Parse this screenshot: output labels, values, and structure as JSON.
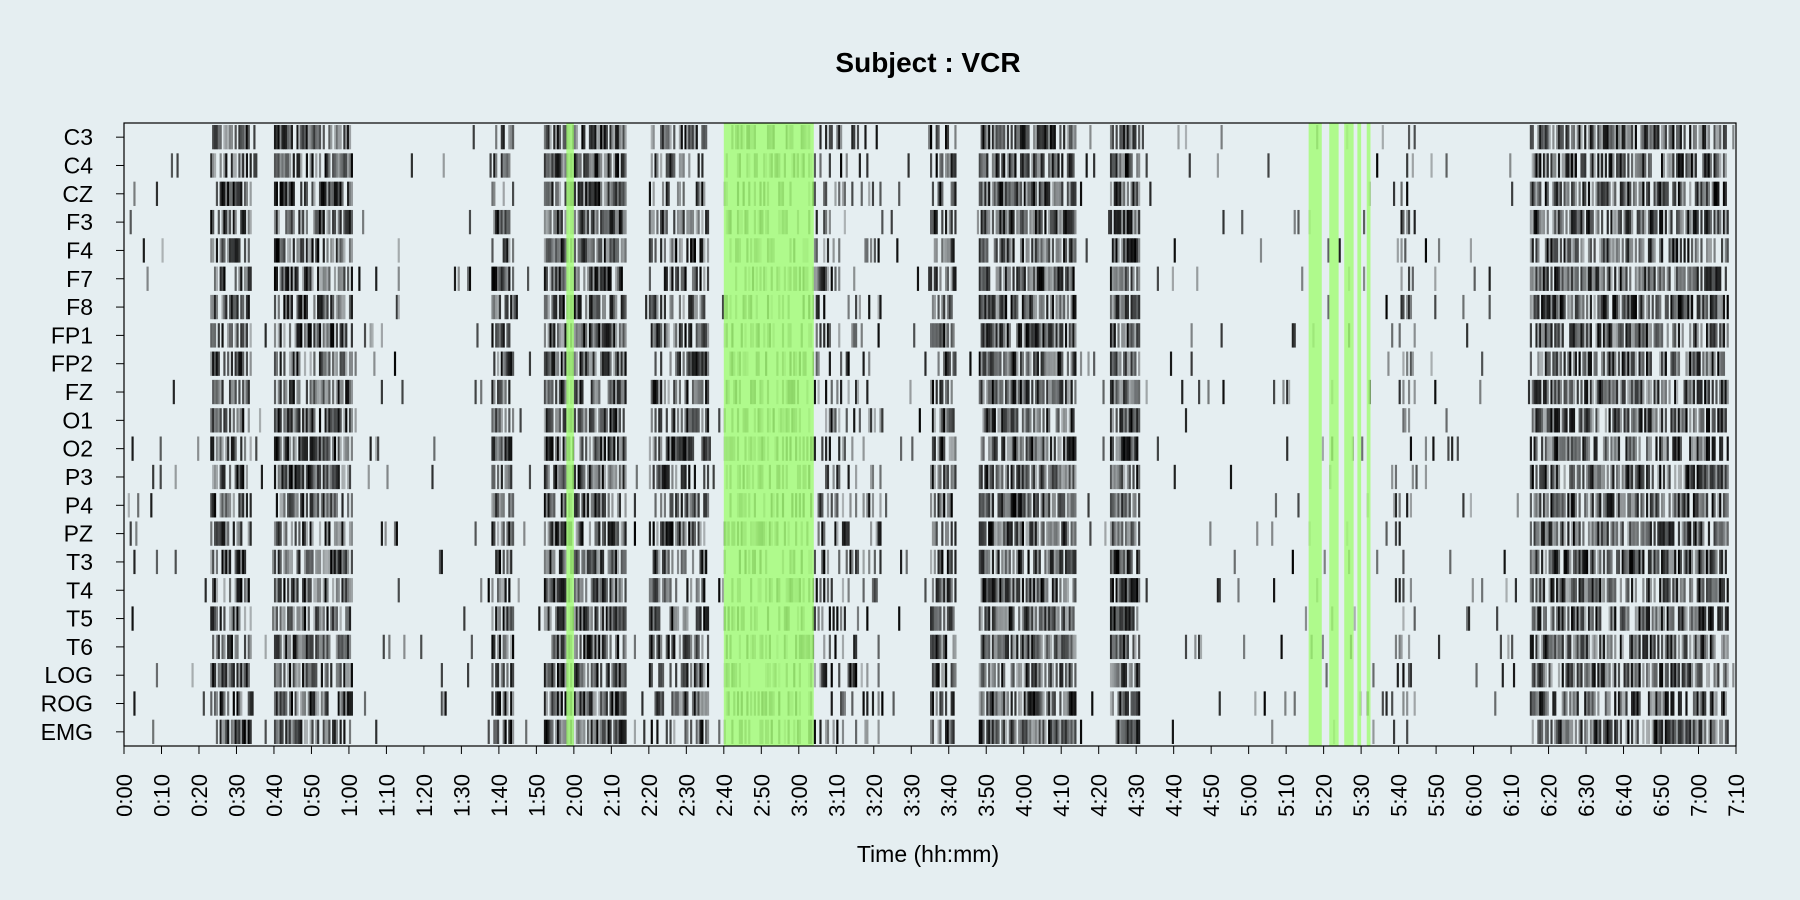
{
  "chart_data": {
    "type": "heatmap",
    "title": "Subject : VCR",
    "xlabel": "Time (hh:mm)",
    "channels": [
      "C3",
      "C4",
      "CZ",
      "F3",
      "F4",
      "F7",
      "F8",
      "FP1",
      "FP2",
      "FZ",
      "O1",
      "O2",
      "P3",
      "P4",
      "PZ",
      "T3",
      "T4",
      "T5",
      "T6",
      "LOG",
      "ROG",
      "EMG"
    ],
    "x_range_minutes": [
      0,
      430
    ],
    "x_tick_labels": [
      "0:00",
      "0:10",
      "0:20",
      "0:30",
      "0:40",
      "0:50",
      "1:00",
      "1:10",
      "1:20",
      "1:30",
      "1:40",
      "1:50",
      "2:00",
      "2:10",
      "2:20",
      "2:30",
      "2:40",
      "2:50",
      "3:00",
      "3:10",
      "3:20",
      "3:30",
      "3:40",
      "3:50",
      "4:00",
      "4:10",
      "4:20",
      "4:30",
      "4:40",
      "4:50",
      "5:00",
      "5:10",
      "5:20",
      "5:30",
      "5:40",
      "5:50",
      "6:00",
      "6:10",
      "6:20",
      "6:30",
      "6:40",
      "6:50",
      "7:00",
      "7:10"
    ],
    "color_scale": {
      "low": "#e6eef1",
      "high": "#000000"
    },
    "highlight_color": "#a6fb7a",
    "highlight_intervals_minutes": [
      [
        118,
        120
      ],
      [
        160,
        184
      ],
      [
        316,
        319.5
      ],
      [
        321.5,
        324
      ],
      [
        325.5,
        328
      ],
      [
        329,
        330
      ],
      [
        331.5,
        332.5
      ]
    ],
    "activity_intervals_minutes": [
      {
        "range": [
          23,
          34
        ],
        "intensity": 0.7
      },
      {
        "range": [
          40,
          61
        ],
        "intensity": 0.75
      },
      {
        "range": [
          98,
          104
        ],
        "intensity": 0.7
      },
      {
        "range": [
          112,
          134
        ],
        "intensity": 0.8
      },
      {
        "range": [
          140,
          156
        ],
        "intensity": 0.6
      },
      {
        "range": [
          160,
          184
        ],
        "intensity": 0.45
      },
      {
        "range": [
          184,
          192
        ],
        "intensity": 0.35
      },
      {
        "range": [
          192,
          202
        ],
        "intensity": 0.25
      },
      {
        "range": [
          215,
          222
        ],
        "intensity": 0.65
      },
      {
        "range": [
          228,
          254
        ],
        "intensity": 0.8
      },
      {
        "range": [
          263,
          271
        ],
        "intensity": 0.85
      },
      {
        "range": [
          338,
          345
        ],
        "intensity": 0.2
      },
      {
        "range": [
          375,
          428
        ],
        "intensity": 0.75
      }
    ]
  }
}
